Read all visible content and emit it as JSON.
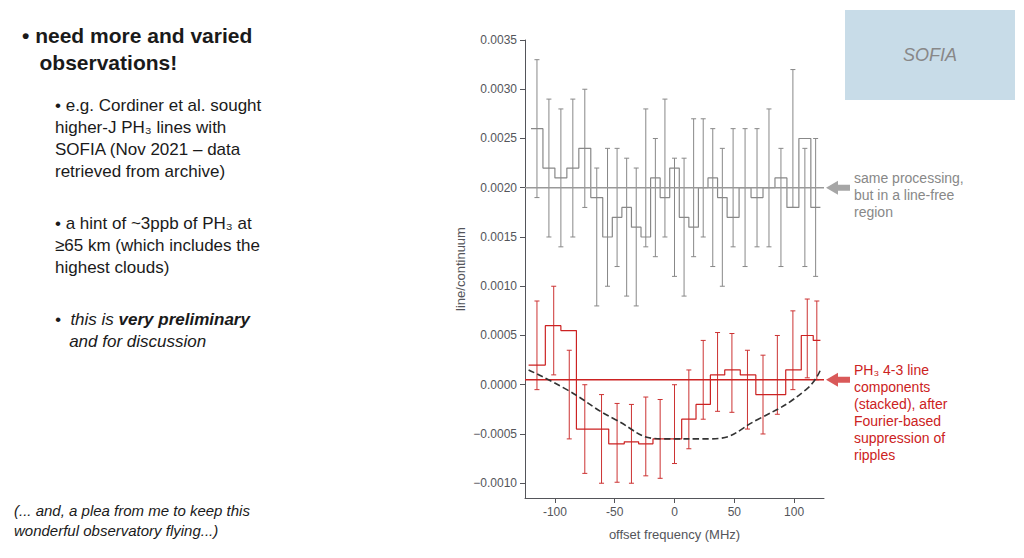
{
  "chart_data": {
    "type": "line",
    "xlabel": "offset frequency (MHz)",
    "ylabel": "line/continuum",
    "xlim": [
      -125,
      125
    ],
    "xticks": [
      -100,
      -50,
      0,
      50,
      100
    ],
    "ylim": [
      -0.00115,
      0.0035
    ],
    "yticks": [
      {
        "value": -0.001,
        "label": "−0.0010"
      },
      {
        "value": -0.0005,
        "label": "−0.0005"
      },
      {
        "value": 0,
        "label": "0.0000"
      },
      {
        "value": 0.0005,
        "label": "0.0005"
      },
      {
        "value": 0.001,
        "label": "0.0010"
      },
      {
        "value": 0.0015,
        "label": "0.0015"
      },
      {
        "value": 0.002,
        "label": "0.0020"
      },
      {
        "value": 0.0025,
        "label": "0.0025"
      },
      {
        "value": 0.003,
        "label": "0.0030"
      },
      {
        "value": 0.0035,
        "label": "0.0035"
      }
    ],
    "grid": false,
    "series": [
      {
        "type": "step",
        "color": "#888888",
        "x": [
          -120,
          -110,
          -100,
          -90,
          -80,
          -70,
          -60,
          -52,
          -44,
          -36,
          -28,
          -20,
          -12,
          -4,
          4,
          12,
          20,
          28,
          36,
          44,
          54,
          64,
          74,
          84,
          94,
          104,
          114,
          122
        ],
        "values": [
          0.0026,
          0.0022,
          0.0021,
          0.0022,
          0.0024,
          0.0019,
          0.0015,
          0.0017,
          0.0018,
          0.0016,
          0.0015,
          0.0021,
          0.0019,
          0.0022,
          0.0017,
          0.0016,
          0.002,
          0.0021,
          0.0019,
          0.0017,
          0.002,
          0.0019,
          0.002,
          0.0021,
          0.0018,
          0.0025,
          0.0018,
          0.0018
        ]
      },
      {
        "type": "errorbar",
        "color": "#888888",
        "x": [
          -115,
          -105,
          -95,
          -85,
          -75,
          -65,
          -56,
          -48,
          -40,
          -32,
          -24,
          -16,
          -8,
          0,
          8,
          16,
          24,
          32,
          40,
          49,
          59,
          69,
          79,
          89,
          99,
          109,
          118
        ],
        "values": [
          0.0026,
          0.0022,
          0.0021,
          0.0022,
          0.0024,
          0.0015,
          0.0017,
          0.0018,
          0.0016,
          0.0015,
          0.0021,
          0.0019,
          0.0022,
          0.0017,
          0.0016,
          0.002,
          0.0021,
          0.0019,
          0.0017,
          0.002,
          0.0019,
          0.002,
          0.0021,
          0.0018,
          0.0025,
          0.0018,
          0.0018
        ],
        "errors": [
          0.0007,
          0.0007,
          0.0007,
          0.0007,
          0.0006,
          0.0007,
          0.0007,
          0.0006,
          0.0007,
          0.0007,
          0.0007,
          0.0006,
          0.0007,
          0.0006,
          0.0007,
          0.0007,
          0.0006,
          0.0007,
          0.0007,
          0.0006,
          0.0007,
          0.0006,
          0.0007,
          0.0006,
          0.0007,
          0.0006,
          0.0007
        ]
      },
      {
        "type": "hline",
        "color": "#999999",
        "values": [
          0.002
        ]
      },
      {
        "type": "step",
        "color": "#cc2222",
        "x": [
          -122,
          -108,
          -95,
          -82,
          -68,
          -55,
          -42,
          -30,
          -18,
          -6,
          6,
          18,
          30,
          42,
          55,
          68,
          80,
          93,
          106,
          116,
          122
        ],
        "values": [
          0.0002,
          0.0006,
          0.00055,
          -0.00045,
          -0.00045,
          -0.0006,
          -0.00058,
          -0.0006,
          -0.00055,
          -0.00055,
          -0.00035,
          -0.0002,
          0.0001,
          0.00015,
          0.0001,
          -0.0001,
          -0.0001,
          0.00015,
          0.0005,
          0.00045,
          0.00045
        ]
      },
      {
        "type": "errorbar",
        "color": "#cc3333",
        "x": [
          -115,
          -101,
          -88,
          -75,
          -61,
          -48,
          -36,
          -24,
          -12,
          0,
          12,
          24,
          36,
          48,
          61,
          74,
          86,
          99,
          111,
          119
        ],
        "values": [
          0.0004,
          0.00055,
          -0.0001,
          -0.00045,
          -0.00055,
          -0.00059,
          -0.0006,
          -0.000525,
          -0.00055,
          -0.0004,
          -0.00025,
          5e-05,
          0.00013,
          0.00012,
          -5e-05,
          -0.0001,
          0.0001,
          0.00035,
          0.00047,
          0.00045
        ],
        "errors": [
          0.00045,
          0.00045,
          0.00045,
          0.00045,
          0.00045,
          0.0004,
          0.0004,
          0.0004,
          0.0004,
          0.0004,
          0.0004,
          0.0004,
          0.0004,
          0.0004,
          0.0004,
          0.0004,
          0.0004,
          0.0004,
          0.0004,
          0.0004
        ]
      },
      {
        "type": "hline",
        "color": "#cc2222",
        "values": [
          5e-05
        ]
      },
      {
        "type": "line",
        "color": "#333333",
        "line_style": "dashed",
        "x": [
          -122,
          -90,
          -50,
          -10,
          30,
          70,
          110,
          122
        ],
        "values": [
          0.00015,
          -5e-05,
          -0.00035,
          -0.00055,
          -0.00055,
          -0.00035,
          -5e-05,
          0.00015
        ]
      }
    ],
    "annotations": [
      {
        "text": "same processing,\nbut in a line-free\nregion",
        "y": 0.002,
        "color": "#888888"
      },
      {
        "text": "PH₃ 4-3 line\ncomponents\n(stacked), after\nFourier-based\nsuppression of\nripples",
        "y": 5e-05,
        "color": "#cc2222"
      }
    ],
    "bullets": [
      {
        "text": "• need more and varied\n   observations!",
        "weight": "bold"
      },
      {
        "text": "• e.g. Cordiner et al. sought\nhigher-J PH₃ lines with\nSOFIA (Nov 2021 – data\nretrieved from archive)"
      },
      {
        "text": "• a hint of ~3ppb of PH₃ at\n≥65 km (which includes the\nhighest clouds)"
      },
      {
        "parts": [
          {
            "text": "•  this is ",
            "style": "italic"
          },
          {
            "text": "very preliminary",
            "style": "italic",
            "weight": "bold"
          },
          {
            "text": "\n   and for discussion",
            "style": "italic"
          }
        ]
      }
    ],
    "footer": "(... and, a plea from me to keep this\nwonderful observatory flying...)",
    "image_caption": {
      "text": "SOFIA",
      "color": "#c8dce8"
    }
  }
}
